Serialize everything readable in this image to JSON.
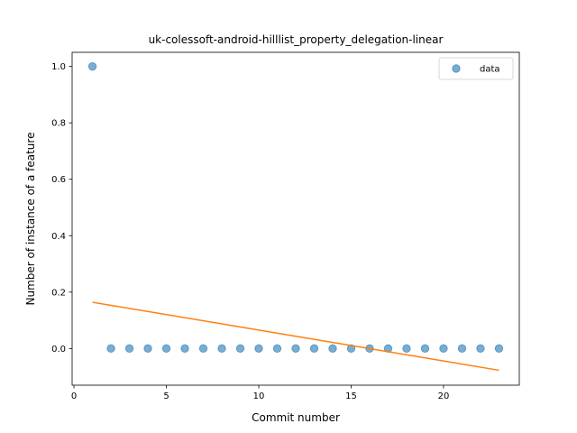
{
  "chart_data": {
    "type": "scatter",
    "title": "uk-colessoft-android-hilllist_property_delegation-linear",
    "xlabel": "Commit number",
    "ylabel": "Number of instance of a feature",
    "xlim": [
      -0.1,
      24.1
    ],
    "ylim": [
      -0.13,
      1.05
    ],
    "xticks": [
      0,
      5,
      10,
      15,
      20
    ],
    "yticks": [
      0.0,
      0.2,
      0.4,
      0.6,
      0.8,
      1.0
    ],
    "xtick_labels": [
      "0",
      "5",
      "10",
      "15",
      "20"
    ],
    "ytick_labels": [
      "0.0",
      "0.2",
      "0.4",
      "0.6",
      "0.8",
      "1.0"
    ],
    "legend_position": "upper-right",
    "series": [
      {
        "name": "data",
        "kind": "scatter",
        "color": "#1f77b4",
        "x": [
          1,
          2,
          3,
          4,
          5,
          6,
          7,
          8,
          9,
          10,
          11,
          12,
          13,
          14,
          15,
          16,
          17,
          18,
          19,
          20,
          21,
          22,
          23
        ],
        "y": [
          1,
          0,
          0,
          0,
          0,
          0,
          0,
          0,
          0,
          0,
          0,
          0,
          0,
          0,
          0,
          0,
          0,
          0,
          0,
          0,
          0,
          0,
          0
        ]
      },
      {
        "kind": "line",
        "color": "#ff7f0e",
        "x": [
          1,
          23
        ],
        "y": [
          0.164,
          -0.077
        ]
      }
    ]
  }
}
